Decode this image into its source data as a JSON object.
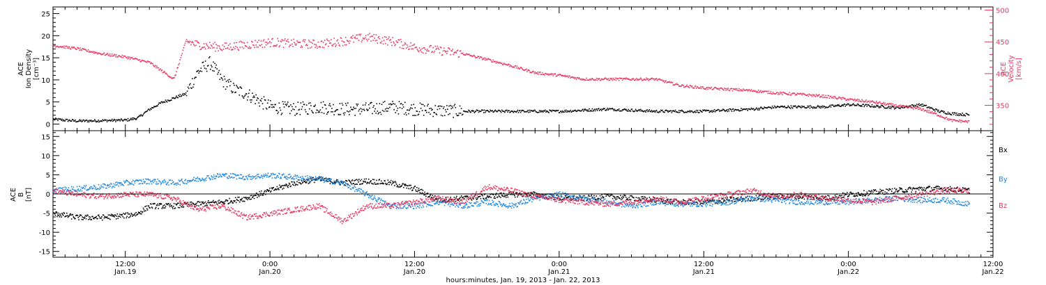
{
  "colors": {
    "black": "#000000",
    "pink": "#e8355f",
    "blue": "#1a86e0"
  },
  "xaxis": {
    "tick_labels": [
      {
        "time": "12:00",
        "date": "Jan.19"
      },
      {
        "time": "0:00",
        "date": "Jan.20"
      },
      {
        "time": "12:00",
        "date": "Jan.20"
      },
      {
        "time": "0:00",
        "date": "Jan.21"
      },
      {
        "time": "12:00",
        "date": "Jan.21"
      },
      {
        "time": "0:00",
        "date": "Jan.22"
      },
      {
        "time": "12:00",
        "date": "Jan.22"
      }
    ],
    "title": "hours:minutes, Jan. 19, 2013 - Jan. 22, 2013"
  },
  "top_panel": {
    "ylabel_left": [
      "ACE",
      "Ion Density",
      "[cm⁻³]"
    ],
    "ylabel_right": [
      "ACE",
      "Velocity",
      "[km/s]"
    ],
    "yticks_left": [
      "0",
      "5",
      "10",
      "15",
      "20",
      "25"
    ],
    "yticks_right": [
      "350",
      "400",
      "450",
      "500"
    ]
  },
  "bottom_panel": {
    "ylabel": [
      "ACE",
      "B",
      "[nT]"
    ],
    "yticks": [
      "-15",
      "-10",
      "-5",
      "0",
      "5",
      "10",
      "15"
    ],
    "legend": [
      "Bx",
      "By",
      "Bz"
    ]
  },
  "chart_data": [
    {
      "type": "scatter",
      "x_unit": "hours since 2013-01-19 00:00 UT",
      "xlim": [
        6,
        84
      ],
      "ylim_left": [
        -1.5,
        26.5
      ],
      "ylim_right": [
        310,
        505
      ],
      "series": [
        {
          "name": "Ion Density",
          "axis": "left",
          "color": "#000000",
          "x": [
            6,
            8,
            10,
            12,
            13,
            14,
            15,
            16,
            17,
            18,
            19,
            20,
            21,
            22,
            23,
            24,
            26,
            28,
            30,
            32,
            34,
            36,
            38,
            40,
            44,
            48,
            52,
            56,
            60,
            64,
            66,
            70,
            72,
            74,
            76,
            78,
            79.5,
            80.5,
            82
          ],
          "y": [
            1.2,
            0.8,
            0.9,
            1.0,
            1.5,
            3.5,
            5,
            6,
            7,
            12,
            14,
            10,
            8,
            7,
            5.5,
            4,
            3.5,
            4,
            3.5,
            3.5,
            4,
            3.5,
            3.2,
            3,
            3,
            3,
            3.5,
            3,
            3,
            3.5,
            4,
            4,
            4.5,
            4.2,
            3.8,
            4.5,
            3,
            2.5,
            2.2
          ]
        },
        {
          "name": "Velocity",
          "axis": "right",
          "color": "#e8355f",
          "x": [
            6,
            8,
            10,
            12,
            14,
            16,
            17,
            18,
            20,
            22,
            24,
            26,
            28,
            30,
            32,
            34,
            36,
            38,
            40,
            42,
            44,
            46,
            48,
            50,
            52,
            54,
            56,
            58,
            60,
            62,
            64,
            66,
            68,
            70,
            72,
            74,
            76,
            78,
            79.5,
            80.5,
            82
          ],
          "y": [
            445,
            440,
            432,
            427,
            418,
            392,
            452,
            446,
            442,
            446,
            450,
            448,
            447,
            452,
            458,
            452,
            442,
            437,
            432,
            423,
            413,
            402,
            398,
            392,
            392,
            392,
            392,
            382,
            378,
            376,
            374,
            370,
            368,
            365,
            360,
            356,
            350,
            345,
            335,
            327,
            325
          ]
        }
      ]
    },
    {
      "type": "line",
      "x_unit": "hours since 2013-01-19 00:00 UT",
      "xlim": [
        6,
        84
      ],
      "ylim": [
        -16.5,
        16.5
      ],
      "series": [
        {
          "name": "Bx",
          "color": "#000000",
          "x": [
            6,
            8,
            10,
            12,
            13,
            14,
            16,
            18,
            20,
            22,
            24,
            26,
            28,
            30,
            32,
            34,
            36,
            38,
            40,
            42,
            44,
            46,
            48,
            50,
            52,
            54,
            56,
            58,
            60,
            62,
            64,
            66,
            68,
            70,
            72,
            74,
            76,
            78,
            80,
            82
          ],
          "y": [
            -5,
            -6,
            -6,
            -5.5,
            -5,
            -3,
            -3,
            -2.5,
            -2,
            -1,
            1,
            3,
            4,
            3,
            3.5,
            3,
            1.5,
            -1.5,
            -1,
            -0.5,
            0,
            0,
            -1,
            -1,
            -0.5,
            -1,
            -1.5,
            -2,
            -2,
            -1.5,
            -1,
            -0.5,
            -0.5,
            -1,
            0,
            0.5,
            1,
            1.5,
            1.5,
            1
          ]
        },
        {
          "name": "By",
          "color": "#1a86e0",
          "x": [
            6,
            8,
            10,
            12,
            14,
            16,
            18,
            20,
            22,
            24,
            26,
            28,
            30,
            32,
            34,
            36,
            38,
            40,
            42,
            44,
            46,
            48,
            50,
            52,
            54,
            56,
            58,
            60,
            62,
            64,
            66,
            68,
            70,
            72,
            74,
            76,
            78,
            80,
            82
          ],
          "y": [
            1,
            1.5,
            2,
            3,
            3.5,
            3,
            4,
            5,
            4.5,
            5,
            4.5,
            4,
            3,
            0,
            -3,
            -3,
            -2,
            -3,
            -2,
            -3,
            -1,
            0,
            -1,
            -2,
            -3,
            -2,
            -2.5,
            -2.5,
            -2,
            -1,
            -1.5,
            -2,
            -2,
            -2,
            -1.5,
            -1,
            -1.5,
            -1.5,
            -2.5
          ]
        },
        {
          "name": "Bz",
          "color": "#e8355f",
          "x": [
            6,
            8,
            10,
            12,
            14,
            16,
            18,
            20,
            22,
            24,
            26,
            28,
            30,
            32,
            34,
            36,
            38,
            40,
            42,
            44,
            46,
            48,
            50,
            52,
            54,
            56,
            58,
            60,
            62,
            64,
            66,
            68,
            70,
            72,
            74,
            76,
            78,
            80,
            82
          ],
          "y": [
            1,
            0,
            -0.5,
            0,
            0,
            -1,
            -4,
            -3,
            -6,
            -5,
            -4,
            -3,
            -7,
            -3,
            -3,
            -2,
            -1,
            -2,
            2,
            1,
            -0.5,
            -1.5,
            -2,
            -2.5,
            -2,
            -1,
            -2,
            -1,
            0,
            1,
            -0.5,
            0,
            -1,
            -1.5,
            -2,
            -1,
            0,
            1,
            1
          ]
        }
      ]
    }
  ]
}
